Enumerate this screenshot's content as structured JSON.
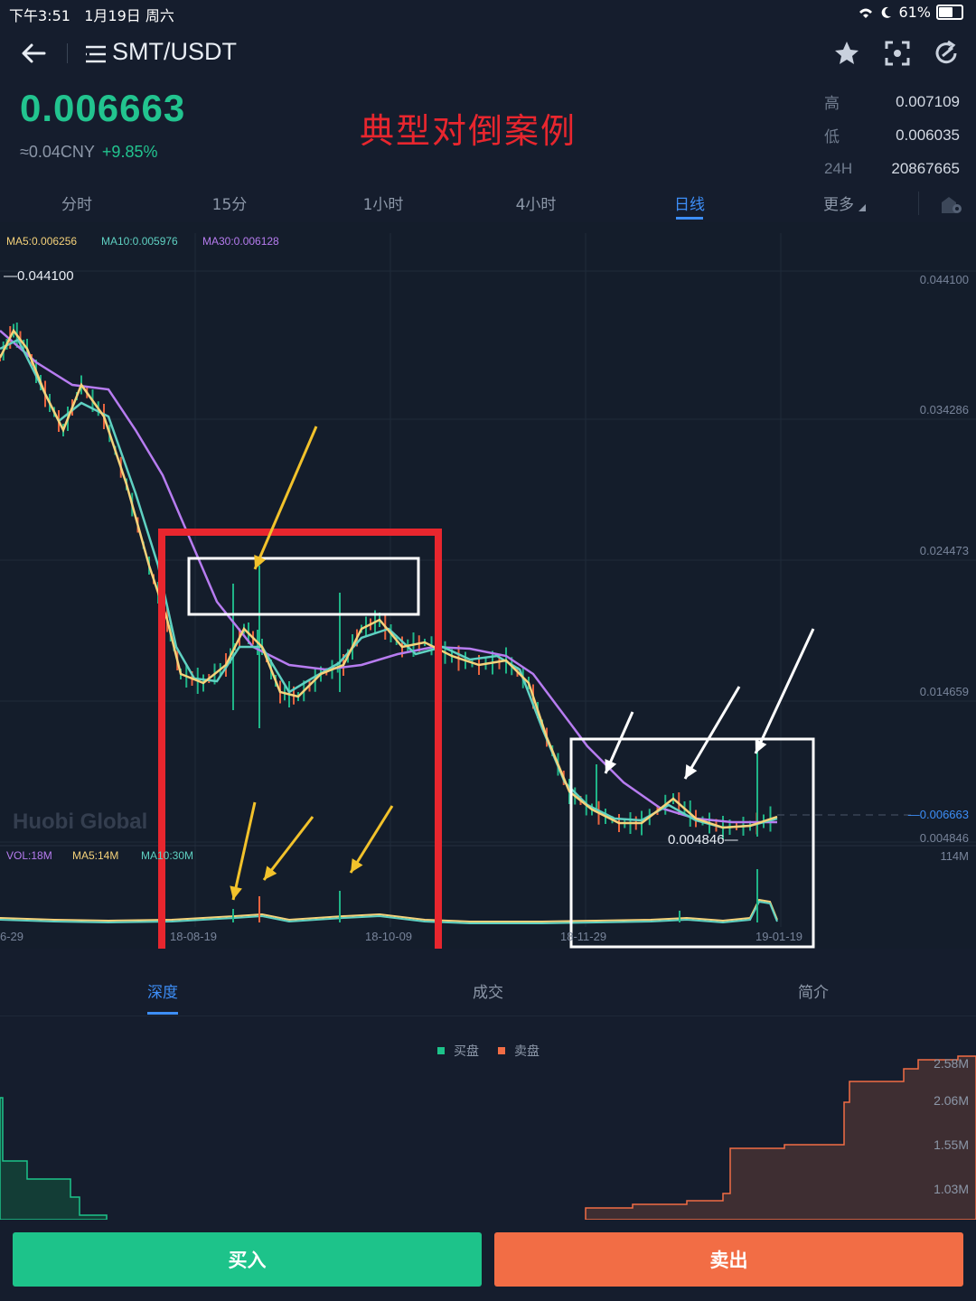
{
  "status_bar": {
    "time": "下午3:51",
    "date": "1月19日 周六",
    "battery": "61%"
  },
  "header": {
    "back_icon": "arrow-left-icon",
    "menu_icon": "list-menu-icon",
    "pair": "SMT/USDT",
    "actions": [
      "star-icon",
      "fullscreen-icon",
      "refresh-icon"
    ]
  },
  "ticker": {
    "last_price": "0.006663",
    "cny": "≈0.04CNY",
    "change": "+9.85%",
    "high_label": "高",
    "high": "0.007109",
    "low_label": "低",
    "low": "0.006035",
    "vol_label": "24H",
    "vol": "20867665"
  },
  "annotation": {
    "title": "典型对倒案例"
  },
  "period_tabs": [
    {
      "label": "分时"
    },
    {
      "label": "15分"
    },
    {
      "label": "1小时"
    },
    {
      "label": "4小时"
    },
    {
      "label": "日线",
      "active": true
    },
    {
      "label": "更多"
    }
  ],
  "chart": {
    "ma_legend": {
      "ma5": "MA5:0.006256",
      "ma10": "MA10:0.005976",
      "ma30": "MA30:0.006128"
    },
    "y_axis": [
      "0.044100",
      "0.034286",
      "0.024473",
      "0.014659",
      "0.004846"
    ],
    "max_marker": "0.044100",
    "min_marker": "0.004846",
    "current_marker": "0.006663",
    "vol_legend": {
      "vol": "VOL:18M",
      "ma5": "MA5:14M",
      "ma10": "MA10:30M"
    },
    "vol_axis": "114M",
    "x_axis": [
      "6-29",
      "18-08-19",
      "18-10-09",
      "18-11-29",
      "19-01-19"
    ],
    "watermark": "Huobi Global",
    "colors": {
      "ma5": "#f5d27a",
      "ma10": "#5fd1c2",
      "ma30": "#b77cf0",
      "up": "#1fb487",
      "down": "#e8643f",
      "annot_red": "#e8262e",
      "annot_yellow": "#f2c22b"
    }
  },
  "lower_tabs": [
    {
      "label": "深度",
      "active": true
    },
    {
      "label": "成交"
    },
    {
      "label": "简介"
    }
  ],
  "depth": {
    "legend_buy": "买盘",
    "legend_sell": "卖盘",
    "axis": [
      "2.58M",
      "2.06M",
      "1.55M",
      "1.03M"
    ]
  },
  "actions": {
    "buy": "买入",
    "sell": "卖出"
  }
}
